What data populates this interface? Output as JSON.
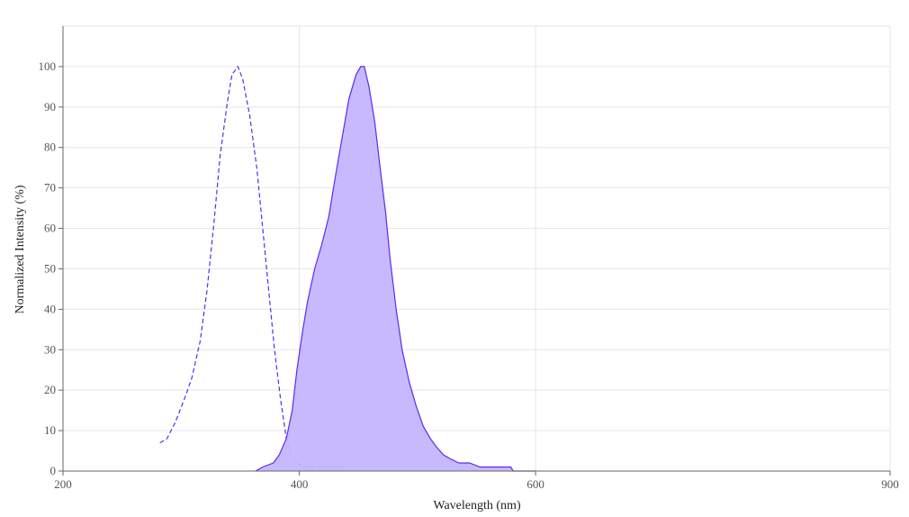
{
  "chart_data": {
    "type": "area",
    "xlabel": "Wavelength (nm)",
    "ylabel": "Normalized Intensity (%)",
    "xlim": [
      200,
      900
    ],
    "ylim": [
      0,
      110
    ],
    "xticks": [
      200,
      400,
      600,
      900
    ],
    "yticks": [
      0,
      10,
      20,
      30,
      40,
      50,
      60,
      70,
      80,
      90,
      100
    ],
    "grid": true,
    "colors": {
      "line": "#5b2bf0",
      "fill": "#c4b5fd"
    },
    "series": [
      {
        "style": "dashed",
        "x": [
          282,
          288,
          295,
          303,
          309,
          316,
          322,
          328,
          333,
          339,
          343,
          348,
          352,
          358,
          364,
          369,
          374,
          379,
          384,
          389,
          393,
          398,
          404,
          438
        ],
        "y": [
          7,
          8,
          12,
          18,
          23,
          32,
          45,
          62,
          78,
          91,
          98,
          100,
          97,
          88,
          75,
          60,
          45,
          30,
          18,
          8,
          4,
          2,
          1,
          1
        ]
      },
      {
        "style": "filled",
        "x": [
          363,
          369,
          378,
          383,
          389,
          394,
          398,
          403,
          407,
          413,
          419,
          425,
          430,
          436,
          442,
          448,
          452,
          455,
          459,
          464,
          468,
          473,
          477,
          482,
          487,
          493,
          499,
          505,
          511,
          516,
          522,
          528,
          535,
          544,
          553,
          579,
          581,
          600
        ],
        "y": [
          0,
          1,
          2,
          4,
          8,
          15,
          25,
          35,
          42,
          50,
          56,
          63,
          72,
          82,
          92,
          98,
          100,
          100,
          95,
          86,
          76,
          64,
          52,
          40,
          30,
          22,
          16,
          11,
          8,
          6,
          4,
          3,
          2,
          2,
          1,
          1,
          0,
          0
        ]
      }
    ]
  }
}
